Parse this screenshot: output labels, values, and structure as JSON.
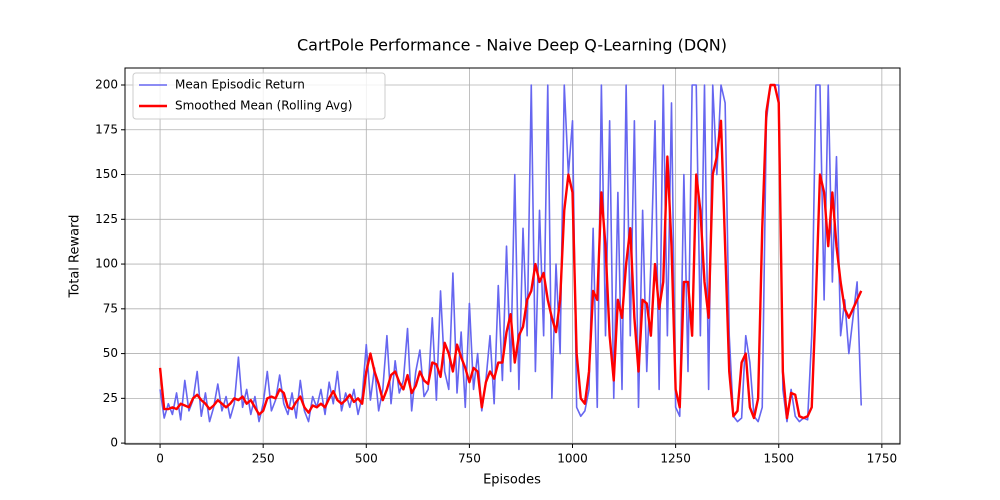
{
  "chart_data": {
    "type": "line",
    "title": "CartPole Performance - Naive Deep Q-Learning (DQN)",
    "x_label": "Episodes",
    "y_label": "Total Reward",
    "x": [
      0,
      10,
      20,
      30,
      40,
      50,
      60,
      70,
      80,
      90,
      100,
      110,
      120,
      130,
      140,
      150,
      160,
      170,
      180,
      190,
      200,
      210,
      220,
      230,
      240,
      250,
      260,
      270,
      280,
      290,
      300,
      310,
      320,
      330,
      340,
      350,
      360,
      370,
      380,
      390,
      400,
      410,
      420,
      430,
      440,
      450,
      460,
      470,
      480,
      490,
      500,
      510,
      520,
      530,
      540,
      550,
      560,
      570,
      580,
      590,
      600,
      610,
      620,
      630,
      640,
      650,
      660,
      670,
      680,
      690,
      700,
      710,
      720,
      730,
      740,
      750,
      760,
      770,
      780,
      790,
      800,
      810,
      820,
      830,
      840,
      850,
      860,
      870,
      880,
      890,
      900,
      910,
      920,
      930,
      940,
      950,
      960,
      970,
      980,
      990,
      1000,
      1010,
      1020,
      1030,
      1040,
      1050,
      1060,
      1070,
      1080,
      1090,
      1100,
      1110,
      1120,
      1130,
      1140,
      1150,
      1160,
      1170,
      1180,
      1190,
      1200,
      1210,
      1220,
      1230,
      1240,
      1250,
      1260,
      1270,
      1280,
      1290,
      1300,
      1310,
      1320,
      1330,
      1340,
      1350,
      1360,
      1370,
      1380,
      1390,
      1400,
      1410,
      1420,
      1430,
      1440,
      1450,
      1460,
      1470,
      1480,
      1490,
      1500,
      1510,
      1520,
      1530,
      1540,
      1550,
      1560,
      1570,
      1580,
      1590,
      1600,
      1610,
      1620,
      1630,
      1640,
      1650,
      1660,
      1670,
      1680,
      1690,
      1700
    ],
    "series": [
      {
        "name": "Mean Episodic Return",
        "color": "#6666f0",
        "width": 1.6,
        "values": [
          30,
          14,
          22,
          16,
          28,
          13,
          35,
          18,
          24,
          40,
          15,
          28,
          12,
          20,
          33,
          18,
          26,
          14,
          22,
          48,
          20,
          30,
          16,
          26,
          12,
          22,
          40,
          18,
          24,
          38,
          22,
          16,
          28,
          14,
          35,
          18,
          12,
          26,
          20,
          30,
          16,
          34,
          22,
          40,
          18,
          28,
          20,
          30,
          16,
          26,
          55,
          24,
          42,
          18,
          30,
          60,
          22,
          46,
          28,
          35,
          64,
          18,
          40,
          52,
          26,
          30,
          70,
          24,
          85,
          40,
          30,
          95,
          28,
          62,
          20,
          78,
          30,
          50,
          18,
          35,
          60,
          22,
          88,
          35,
          110,
          40,
          150,
          30,
          120,
          60,
          200,
          40,
          130,
          60,
          200,
          25,
          100,
          50,
          200,
          150,
          180,
          20,
          15,
          18,
          30,
          120,
          20,
          200,
          60,
          180,
          25,
          140,
          30,
          200,
          60,
          180,
          20,
          130,
          40,
          100,
          180,
          30,
          200,
          60,
          190,
          20,
          15,
          150,
          40,
          200,
          200,
          60,
          200,
          30,
          200,
          150,
          200,
          190,
          60,
          15,
          12,
          14,
          60,
          45,
          15,
          12,
          20,
          180,
          200,
          200,
          200,
          30,
          12,
          30,
          15,
          12,
          14,
          13,
          60,
          200,
          200,
          80,
          200,
          90,
          160,
          60,
          80,
          50,
          70,
          90,
          21
        ]
      },
      {
        "name": "Smoothed Mean (Rolling Avg)",
        "color": "#ff0000",
        "width": 2.4,
        "values": [
          42,
          19,
          19,
          20,
          19,
          22,
          21,
          20,
          25,
          27,
          24,
          22,
          19,
          21,
          24,
          22,
          20,
          22,
          25,
          24,
          26,
          22,
          24,
          20,
          16,
          18,
          25,
          26,
          25,
          30,
          28,
          20,
          19,
          23,
          26,
          20,
          17,
          21,
          20,
          22,
          20,
          25,
          29,
          24,
          22,
          24,
          27,
          23,
          25,
          22,
          40,
          50,
          40,
          33,
          24,
          30,
          38,
          40,
          34,
          30,
          38,
          28,
          32,
          40,
          35,
          33,
          45,
          44,
          37,
          56,
          50,
          40,
          55,
          48,
          42,
          34,
          42,
          40,
          20,
          34,
          40,
          36,
          45,
          45,
          62,
          72,
          45,
          60,
          65,
          80,
          85,
          100,
          90,
          95,
          80,
          70,
          62,
          80,
          130,
          150,
          140,
          50,
          25,
          22,
          40,
          85,
          80,
          140,
          110,
          60,
          35,
          80,
          70,
          100,
          120,
          70,
          40,
          80,
          78,
          60,
          100,
          75,
          90,
          160,
          110,
          30,
          20,
          90,
          90,
          60,
          150,
          130,
          90,
          70,
          150,
          160,
          180,
          110,
          40,
          15,
          18,
          45,
          50,
          20,
          14,
          25,
          120,
          185,
          200,
          200,
          190,
          40,
          14,
          28,
          27,
          15,
          14,
          15,
          20,
          80,
          150,
          140,
          110,
          140,
          110,
          90,
          75,
          70,
          75,
          80,
          85
        ]
      }
    ],
    "xlim": [
      -85,
      1794
    ],
    "ylim": [
      -0.5,
      209.5
    ],
    "xticks": [
      0,
      250,
      500,
      750,
      1000,
      1250,
      1500,
      1750
    ],
    "yticks": [
      0,
      25,
      50,
      75,
      100,
      125,
      150,
      175,
      200
    ],
    "grid": true,
    "legend": "upper-left"
  }
}
